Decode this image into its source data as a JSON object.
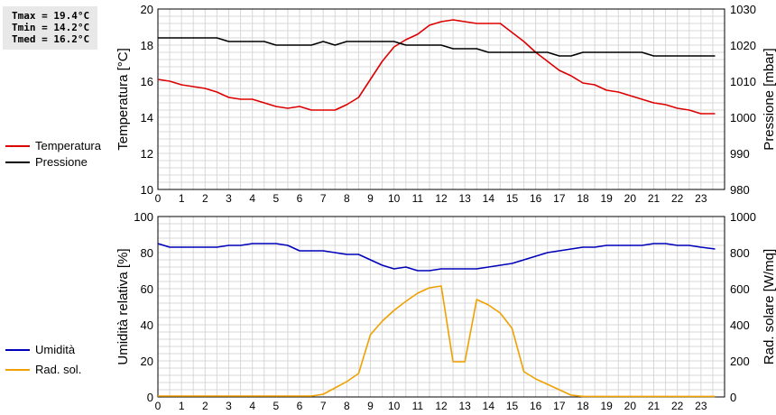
{
  "stats": {
    "tmax": "Tmax = 19.4°C",
    "tmin": "Tmin = 14.2°C",
    "tmed": "Tmed = 16.2°C"
  },
  "legend_top": [
    {
      "label": "Temperatura",
      "color": "#dd0000"
    },
    {
      "label": "Pressione",
      "color": "#000000"
    }
  ],
  "legend_bottom": [
    {
      "label": "Umidità",
      "color": "#0000bb"
    },
    {
      "label": "Rad. sol.",
      "color": "#f0a000"
    }
  ],
  "chart_data": [
    {
      "type": "line",
      "ylabel": "Temperatura [°C]",
      "y2label": "Pressione [mbar]",
      "xlim": [
        0,
        24
      ],
      "ylim": [
        10,
        20
      ],
      "y2lim": [
        980,
        1030
      ],
      "x_ticks": [
        "0",
        "1",
        "2",
        "3",
        "4",
        "5",
        "6",
        "7",
        "8",
        "9",
        "10",
        "11",
        "12",
        "13",
        "14",
        "15",
        "16",
        "17",
        "18",
        "19",
        "20",
        "21",
        "22",
        "23"
      ],
      "y_ticks": [
        "10",
        "12",
        "14",
        "16",
        "18",
        "20"
      ],
      "y2_ticks": [
        "980",
        "990",
        "1000",
        "1010",
        "1020",
        "1030"
      ],
      "grid": true,
      "series": [
        {
          "name": "Temperatura",
          "axis": "left",
          "color": "#dd0000",
          "points": [
            [
              0,
              16.1
            ],
            [
              0.5,
              16.0
            ],
            [
              1,
              15.8
            ],
            [
              1.5,
              15.7
            ],
            [
              2,
              15.6
            ],
            [
              2.5,
              15.4
            ],
            [
              3,
              15.1
            ],
            [
              3.5,
              15.0
            ],
            [
              4,
              15.0
            ],
            [
              4.5,
              14.8
            ],
            [
              5,
              14.6
            ],
            [
              5.5,
              14.5
            ],
            [
              6,
              14.6
            ],
            [
              6.5,
              14.4
            ],
            [
              7,
              14.4
            ],
            [
              7.5,
              14.4
            ],
            [
              8,
              14.7
            ],
            [
              8.5,
              15.1
            ],
            [
              9,
              16.1
            ],
            [
              9.5,
              17.1
            ],
            [
              10,
              17.9
            ],
            [
              10.5,
              18.3
            ],
            [
              11,
              18.6
            ],
            [
              11.5,
              19.1
            ],
            [
              12,
              19.3
            ],
            [
              12.5,
              19.4
            ],
            [
              13,
              19.3
            ],
            [
              13.5,
              19.2
            ],
            [
              14,
              19.2
            ],
            [
              14.5,
              19.2
            ],
            [
              15,
              18.7
            ],
            [
              15.5,
              18.2
            ],
            [
              16,
              17.6
            ],
            [
              16.5,
              17.1
            ],
            [
              17,
              16.6
            ],
            [
              17.5,
              16.3
            ],
            [
              18,
              15.9
            ],
            [
              18.5,
              15.8
            ],
            [
              19,
              15.5
            ],
            [
              19.5,
              15.4
            ],
            [
              20,
              15.2
            ],
            [
              20.5,
              15.0
            ],
            [
              21,
              14.8
            ],
            [
              21.5,
              14.7
            ],
            [
              22,
              14.5
            ],
            [
              22.5,
              14.4
            ],
            [
              23,
              14.2
            ],
            [
              23.6,
              14.2
            ]
          ]
        },
        {
          "name": "Pressione",
          "axis": "right",
          "color": "#000000",
          "points": [
            [
              0,
              1022
            ],
            [
              2.5,
              1022
            ],
            [
              3,
              1021
            ],
            [
              4.5,
              1021
            ],
            [
              5,
              1020
            ],
            [
              6.5,
              1020
            ],
            [
              7,
              1021
            ],
            [
              7.5,
              1020
            ],
            [
              8,
              1021
            ],
            [
              10,
              1021
            ],
            [
              10.5,
              1020
            ],
            [
              12,
              1020
            ],
            [
              12.5,
              1019
            ],
            [
              13.5,
              1019
            ],
            [
              14,
              1018
            ],
            [
              16.5,
              1018
            ],
            [
              17,
              1017
            ],
            [
              17.5,
              1017
            ],
            [
              18,
              1018
            ],
            [
              20.5,
              1018
            ],
            [
              21,
              1017
            ],
            [
              23.6,
              1017
            ]
          ]
        }
      ]
    },
    {
      "type": "line",
      "ylabel": "Umidità relativa [%]",
      "y2label": "Rad. solare [W/mq]",
      "xlim": [
        0,
        24
      ],
      "ylim": [
        0,
        100
      ],
      "y2lim": [
        0,
        1000
      ],
      "x_ticks": [
        "0",
        "1",
        "2",
        "3",
        "4",
        "5",
        "6",
        "7",
        "8",
        "9",
        "10",
        "11",
        "12",
        "13",
        "14",
        "15",
        "16",
        "17",
        "18",
        "19",
        "20",
        "21",
        "22",
        "23"
      ],
      "y_ticks": [
        "0",
        "20",
        "40",
        "60",
        "80",
        "100"
      ],
      "y2_ticks": [
        "0",
        "200",
        "400",
        "600",
        "800",
        "1000"
      ],
      "grid": true,
      "series": [
        {
          "name": "Umidità",
          "axis": "left",
          "color": "#0000bb",
          "points": [
            [
              0,
              85
            ],
            [
              0.5,
              83
            ],
            [
              2.5,
              83
            ],
            [
              3,
              84
            ],
            [
              3.5,
              84
            ],
            [
              4,
              85
            ],
            [
              5,
              85
            ],
            [
              5.5,
              84
            ],
            [
              6,
              81
            ],
            [
              7,
              81
            ],
            [
              7.5,
              80
            ],
            [
              8,
              79
            ],
            [
              8.5,
              79
            ],
            [
              9,
              76
            ],
            [
              9.5,
              73
            ],
            [
              10,
              71
            ],
            [
              10.5,
              72
            ],
            [
              11,
              70
            ],
            [
              11.5,
              70
            ],
            [
              12,
              71
            ],
            [
              13.5,
              71
            ],
            [
              14,
              72
            ],
            [
              14.5,
              73
            ],
            [
              15,
              74
            ],
            [
              15.5,
              76
            ],
            [
              16,
              78
            ],
            [
              16.5,
              80
            ],
            [
              17,
              81
            ],
            [
              17.5,
              82
            ],
            [
              18,
              83
            ],
            [
              18.5,
              83
            ],
            [
              19,
              84
            ],
            [
              20.5,
              84
            ],
            [
              21,
              85
            ],
            [
              21.5,
              85
            ],
            [
              22,
              84
            ],
            [
              22.5,
              84
            ],
            [
              23,
              83
            ],
            [
              23.6,
              82
            ]
          ]
        },
        {
          "name": "Rad. sol.",
          "axis": "right",
          "color": "#f0a000",
          "points": [
            [
              0,
              5
            ],
            [
              6.5,
              5
            ],
            [
              7,
              15
            ],
            [
              7.5,
              50
            ],
            [
              8,
              85
            ],
            [
              8.5,
              130
            ],
            [
              9,
              345
            ],
            [
              9.5,
              420
            ],
            [
              10,
              480
            ],
            [
              10.5,
              530
            ],
            [
              11,
              575
            ],
            [
              11.5,
              605
            ],
            [
              12,
              615
            ],
            [
              12.5,
              195
            ],
            [
              13,
              195
            ],
            [
              13.5,
              540
            ],
            [
              14,
              510
            ],
            [
              14.5,
              465
            ],
            [
              15,
              380
            ],
            [
              15.5,
              140
            ],
            [
              16,
              100
            ],
            [
              16.5,
              70
            ],
            [
              17,
              40
            ],
            [
              17.5,
              10
            ],
            [
              18,
              3
            ],
            [
              23.6,
              3
            ]
          ]
        }
      ]
    }
  ]
}
